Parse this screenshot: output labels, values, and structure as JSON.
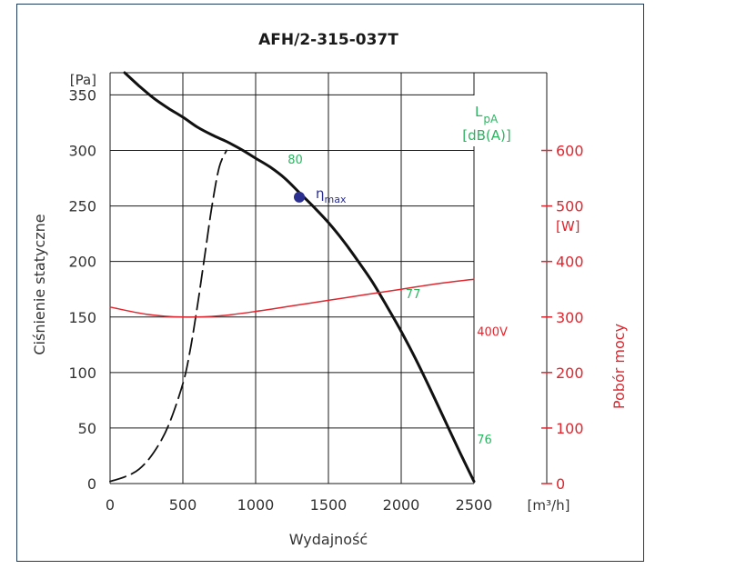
{
  "chart_data": {
    "type": "line",
    "title": "AFH/2-315-037T",
    "xlabel": "Wydajność",
    "xunit": "[m³/h]",
    "ylabel": "Ciśnienie statyczne",
    "yunit": "[Pa]",
    "y2label": "Pobór mocy",
    "y2unit": "[W]",
    "xlim": [
      0,
      2500
    ],
    "ylim": [
      0,
      370
    ],
    "y2lim": [
      0,
      740
    ],
    "xticks": [
      0,
      500,
      1000,
      1500,
      2000,
      2500
    ],
    "yticks": [
      0,
      50,
      100,
      150,
      200,
      250,
      300,
      350
    ],
    "y2ticks": [
      0,
      100,
      200,
      300,
      400,
      500,
      600
    ],
    "grid": true,
    "noise_label": "L",
    "noise_label_sub": "pA",
    "noise_unit": "[dB(A)]",
    "eta_symbol": "η",
    "eta_sub": "max",
    "eta_point": {
      "x": 1300,
      "y": 258
    },
    "series": [
      {
        "name": "",
        "axis": "left",
        "color": "#111111",
        "style": "solid",
        "x": [
          100,
          200,
          300,
          400,
          500,
          600,
          700,
          800,
          900,
          1000,
          1100,
          1200,
          1300,
          1400,
          1500,
          1600,
          1700,
          1800,
          1900,
          2000,
          2100,
          2200,
          2300,
          2400,
          2500
        ],
        "y": [
          370,
          358,
          347,
          338,
          330,
          321,
          314,
          308,
          301,
          293,
          285,
          275,
          262,
          249,
          235,
          219,
          201,
          182,
          160,
          137,
          112,
          85,
          57,
          29,
          2
        ]
      },
      {
        "name": "",
        "axis": "left",
        "color": "#111111",
        "style": "dashed",
        "x": [
          0,
          100,
          200,
          300,
          400,
          500,
          550,
          600,
          650,
          700,
          750,
          800
        ],
        "y": [
          2,
          6,
          13,
          28,
          52,
          90,
          120,
          160,
          205,
          250,
          285,
          300
        ]
      },
      {
        "name": "400V",
        "axis": "right",
        "color": "#e0262e",
        "style": "solid",
        "x": [
          0,
          250,
          500,
          750,
          1000,
          1250,
          1500,
          1750,
          2000,
          2250,
          2500
        ],
        "y": [
          318,
          305,
          300,
          302,
          310,
          320,
          330,
          340,
          350,
          360,
          368
        ]
      }
    ],
    "annotations": [
      {
        "text": "80",
        "x": 1220,
        "y": 288,
        "color": "#2bb561"
      },
      {
        "text": "77",
        "x": 2030,
        "y": 167,
        "color": "#2bb561"
      },
      {
        "text": "76",
        "x": 2520,
        "y": 36,
        "color": "#2bb561"
      },
      {
        "text": "400V",
        "x": 2520,
        "y": 133,
        "color": "#e0262e"
      }
    ]
  },
  "colors": {
    "frame": "#1f3a5f",
    "grid": "#1a1a1a",
    "axis_text": "#333333",
    "power": "#e0262e",
    "noise": "#2bb561",
    "eta_point": "#2b2f8f"
  }
}
